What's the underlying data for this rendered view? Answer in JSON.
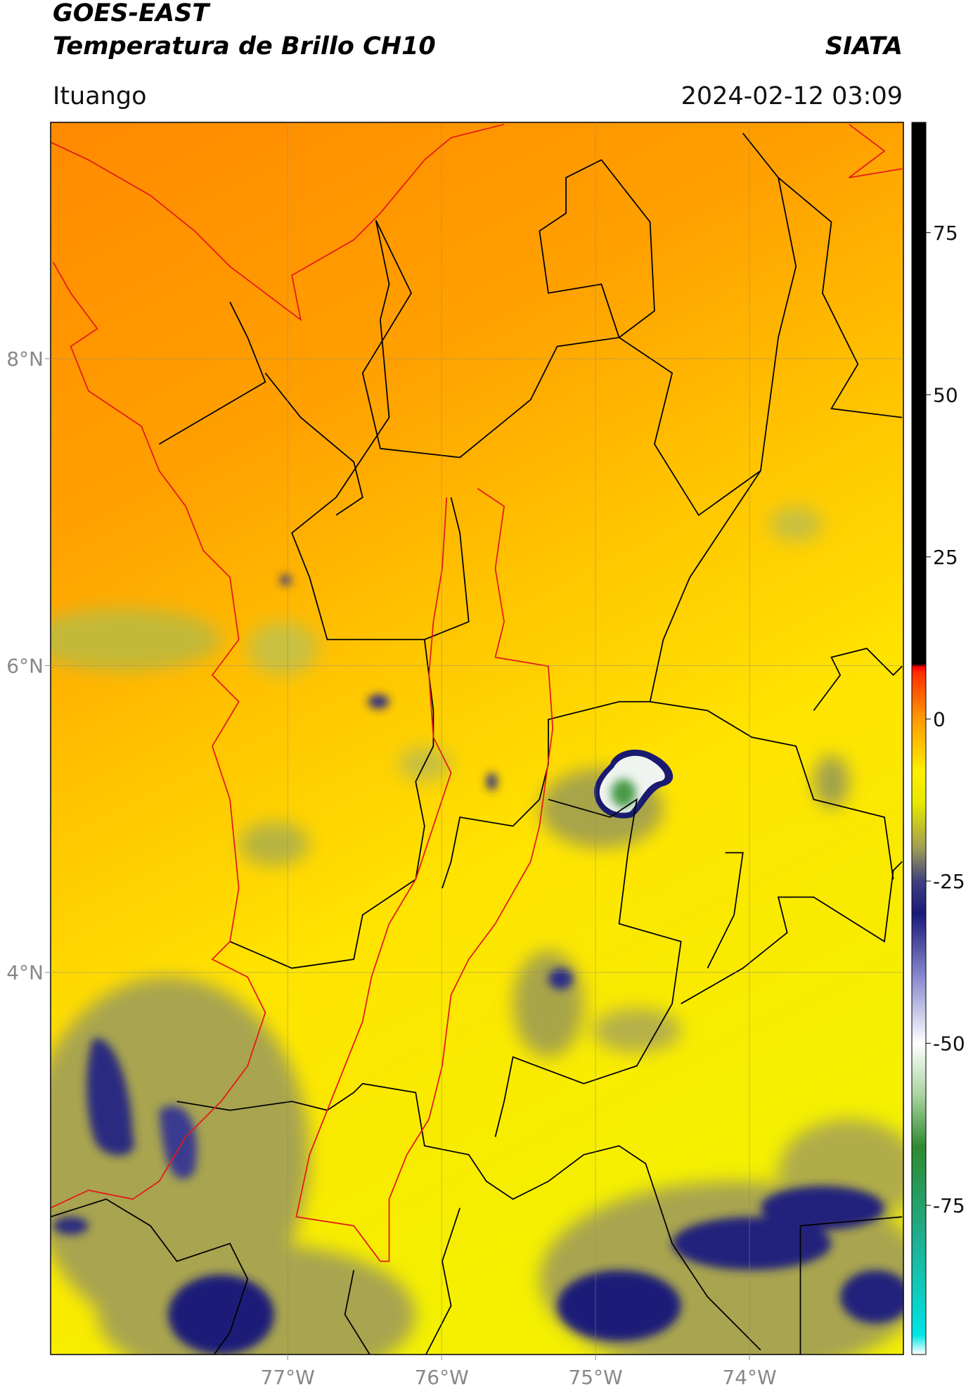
{
  "chart_data": {
    "type": "map",
    "title": "GOES-EAST",
    "subtitle": "Temperatura de Brillo CH10",
    "source": "SIATA",
    "location": "Ituango",
    "timestamp": "2024-02-12 03:09",
    "xlim": [
      -78.54,
      -73.0
    ],
    "ylim": [
      1.51,
      9.54
    ],
    "xticks": [
      {
        "value": -77,
        "label": "77°W"
      },
      {
        "value": -76,
        "label": "76°W"
      },
      {
        "value": -75,
        "label": "75°W"
      },
      {
        "value": -74,
        "label": "74°W"
      }
    ],
    "yticks": [
      {
        "value": 8,
        "label": "8°N"
      },
      {
        "value": 6,
        "label": "6°N"
      },
      {
        "value": 4,
        "label": "4°N"
      }
    ],
    "grid": true,
    "colorbar": {
      "lim": [
        -98,
        92
      ],
      "ticks": [
        75,
        50,
        25,
        0,
        -25,
        -50,
        -75
      ],
      "stops": [
        {
          "value": -98,
          "color": "#ffffff"
        },
        {
          "value": -95,
          "color": "#00e5e5"
        },
        {
          "value": -80,
          "color": "#1fae8f"
        },
        {
          "value": -66,
          "color": "#2e8a2e"
        },
        {
          "value": -58,
          "color": "#a9d4a0"
        },
        {
          "value": -50,
          "color": "#ffffff"
        },
        {
          "value": -40,
          "color": "#8b8bd0"
        },
        {
          "value": -30,
          "color": "#1a1a7a"
        },
        {
          "value": -25,
          "color": "#404080"
        },
        {
          "value": -20,
          "color": "#9e9c55"
        },
        {
          "value": -13,
          "color": "#e8e800"
        },
        {
          "value": -8,
          "color": "#ffee00"
        },
        {
          "value": 0,
          "color": "#ff9a00"
        },
        {
          "value": 7,
          "color": "#ff3000"
        },
        {
          "value": 8,
          "color": "#ff0000"
        },
        {
          "value": 8.5,
          "color": "#000000"
        },
        {
          "value": 92,
          "color": "#000000"
        }
      ]
    }
  }
}
